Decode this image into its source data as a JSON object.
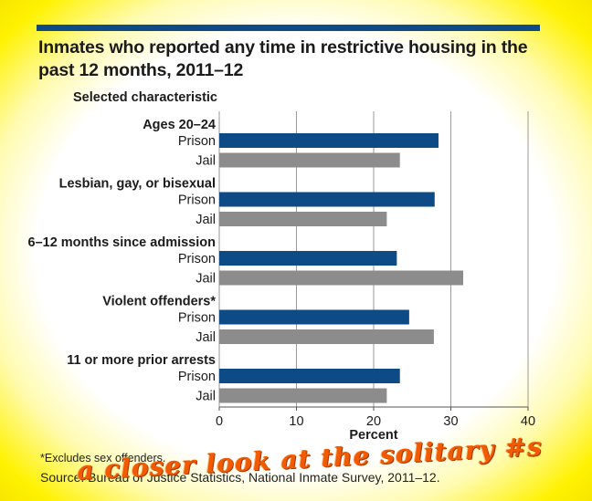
{
  "title": "Inmates who reported any time in restrictive housing in the past 12 months, 2011–12",
  "footnote": "*Excludes sex offenders.",
  "source": "Source: Bureau of Justice Statistics, National Inmate Survey, 2011–12.",
  "overlay_text": "a closer look at the solitary #s",
  "colors": {
    "prison": "#0d4a86",
    "jail": "#8c8c8c",
    "topbar": "#0d4a86",
    "glow": "#fff200"
  },
  "chart_data": {
    "type": "bar",
    "orientation": "horizontal",
    "title": "Inmates who reported any time in restrictive housing in the past 12 months, 2011–12",
    "category_header": "Selected characteristic",
    "xlabel": "Percent",
    "xlim": [
      0,
      40
    ],
    "xticks": [
      0,
      10,
      20,
      30,
      40
    ],
    "grid": "vertical",
    "groups": [
      {
        "label": "Ages 20–24",
        "bars": [
          {
            "name": "Prison",
            "value": 28.4
          },
          {
            "name": "Jail",
            "value": 23.4
          }
        ]
      },
      {
        "label": "Lesbian, gay, or bisexual",
        "bars": [
          {
            "name": "Prison",
            "value": 27.9
          },
          {
            "name": "Jail",
            "value": 21.7
          }
        ]
      },
      {
        "label": "6–12 months since admission",
        "bars": [
          {
            "name": "Prison",
            "value": 23.0
          },
          {
            "name": "Jail",
            "value": 31.6
          }
        ]
      },
      {
        "label": "Violent offenders*",
        "bars": [
          {
            "name": "Prison",
            "value": 24.6
          },
          {
            "name": "Jail",
            "value": 27.8
          }
        ]
      },
      {
        "label": "11 or more prior arrests",
        "bars": [
          {
            "name": "Prison",
            "value": 23.4
          },
          {
            "name": "Jail",
            "value": 21.7
          }
        ]
      }
    ]
  }
}
